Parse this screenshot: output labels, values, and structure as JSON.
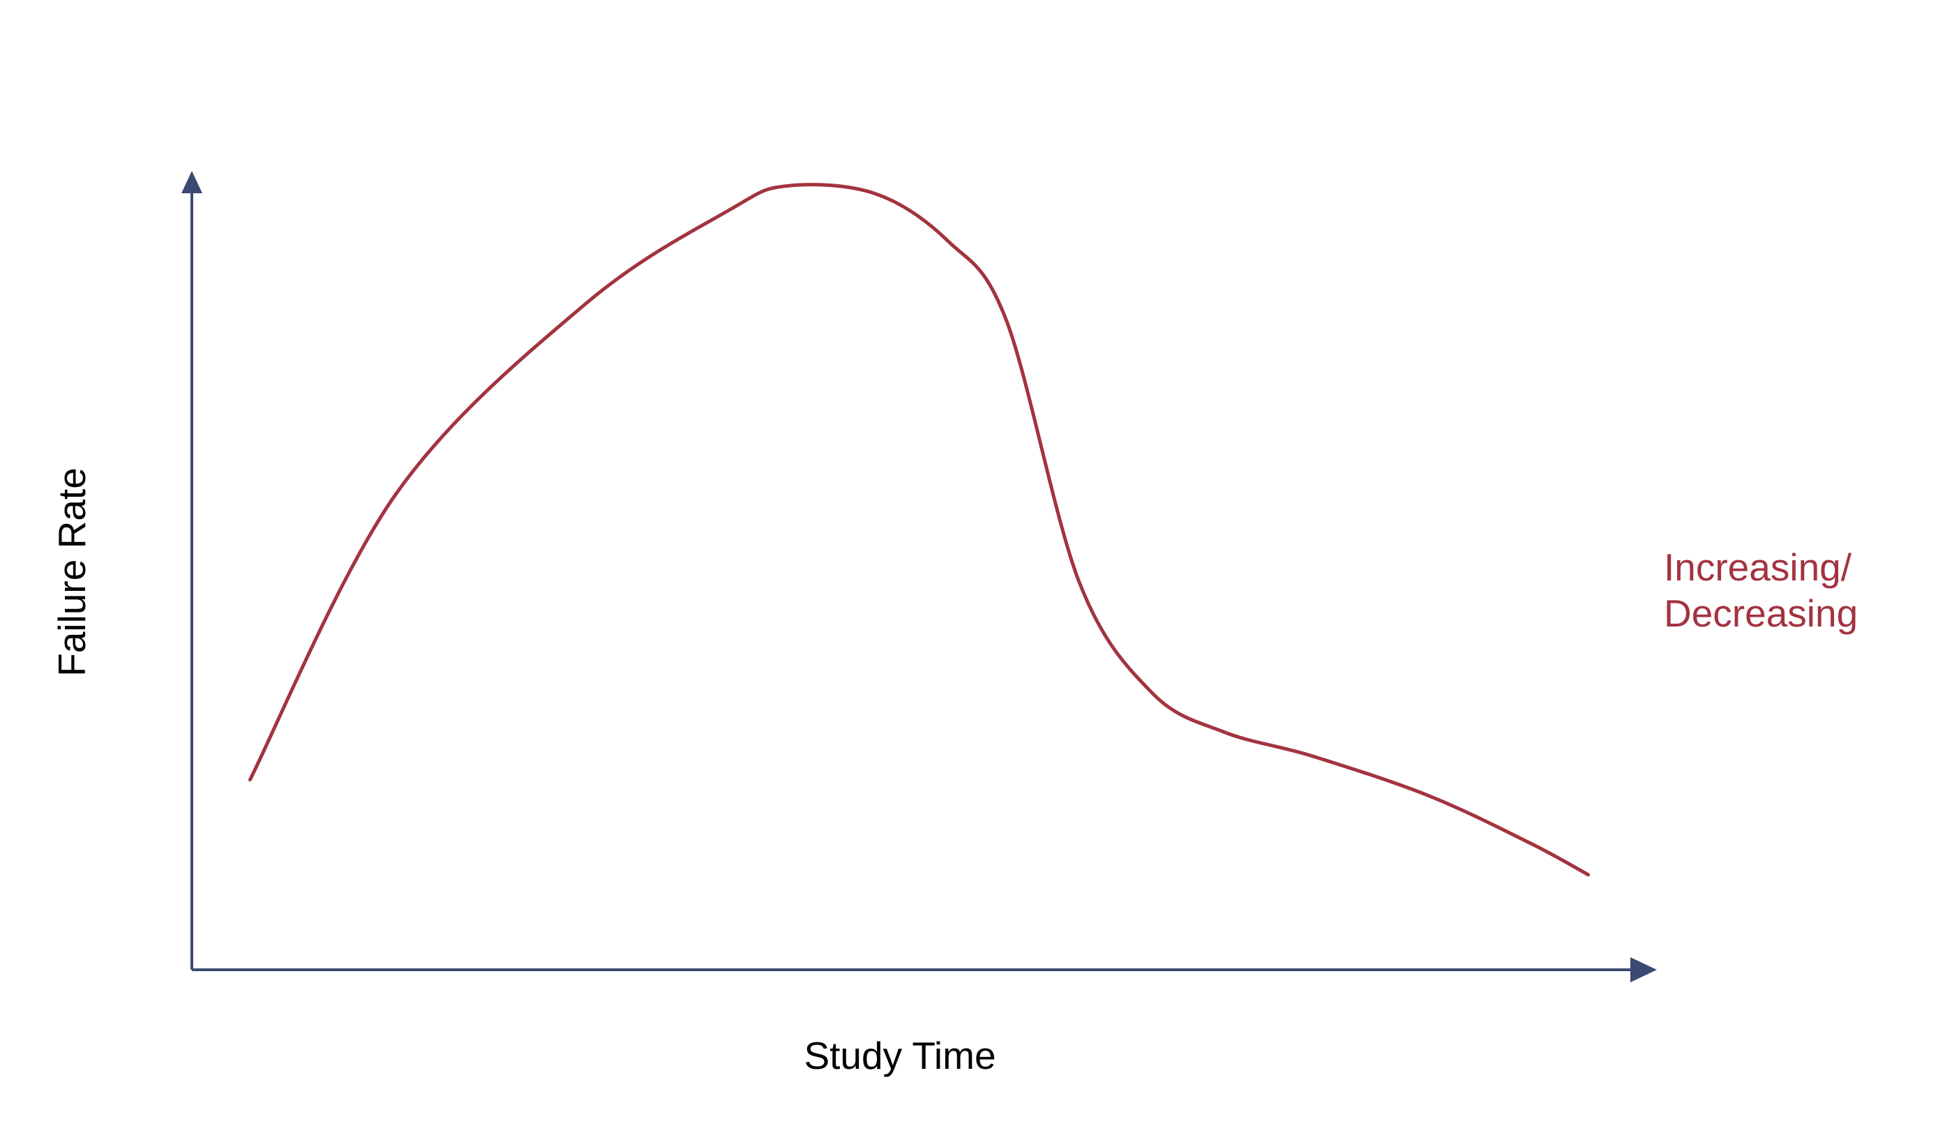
{
  "chart_data": {
    "type": "line",
    "title": "",
    "xlabel": "Study Time",
    "ylabel": "Failure Rate",
    "grid": false,
    "legend": "none",
    "xlim": [
      0,
      1
    ],
    "ylim": [
      0,
      1
    ],
    "series": [
      {
        "name": "Increasing/ Decreasing",
        "label_lines": [
          "Increasing/",
          "Decreasing"
        ],
        "label_position": "right",
        "color": "#a33340",
        "x": [
          0.04,
          0.14,
          0.27,
          0.37,
          0.41,
          0.47,
          0.52,
          0.56,
          0.61,
          0.66,
          0.71,
          0.77,
          0.85,
          0.92,
          0.96
        ],
        "y": [
          0.24,
          0.6,
          0.84,
          0.96,
          0.99,
          0.98,
          0.92,
          0.82,
          0.49,
          0.35,
          0.3,
          0.27,
          0.22,
          0.16,
          0.12
        ]
      }
    ]
  },
  "colors": {
    "axis": "#3c4a72",
    "series": "#a33340",
    "text": "#000000"
  }
}
